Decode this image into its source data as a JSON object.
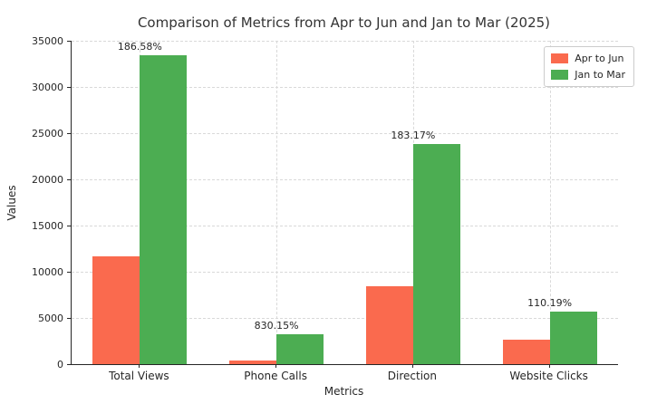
{
  "title": "Comparison of Metrics from Apr to Jun and Jan to Mar (2025)",
  "chart_data": {
    "type": "bar",
    "title": "Comparison of Metrics from Apr to Jun and Jan to Mar (2025)",
    "xlabel": "Metrics",
    "ylabel": "Values",
    "categories": [
      "Total Views",
      "Phone Calls",
      "Direction",
      "Website Clicks"
    ],
    "series": [
      {
        "name": "Apr to Jun",
        "color": "#fa6a4e",
        "values": [
          11670,
          345,
          8420,
          2690
        ]
      },
      {
        "name": "Jan to Mar",
        "color": "#4cad52",
        "values": [
          33444,
          3209,
          23843,
          5654
        ]
      }
    ],
    "annotations": [
      "186.58%",
      "830.15%",
      "183.17%",
      "110.19%"
    ],
    "ylim": [
      0,
      35000
    ],
    "yticks": [
      0,
      5000,
      10000,
      15000,
      20000,
      25000,
      30000,
      35000
    ],
    "grid": true,
    "grid_style": "dashed",
    "legend_position": "upper right",
    "colors": {
      "text": "#262626",
      "grid": "#d9d9d9",
      "background": "#ffffff"
    }
  }
}
